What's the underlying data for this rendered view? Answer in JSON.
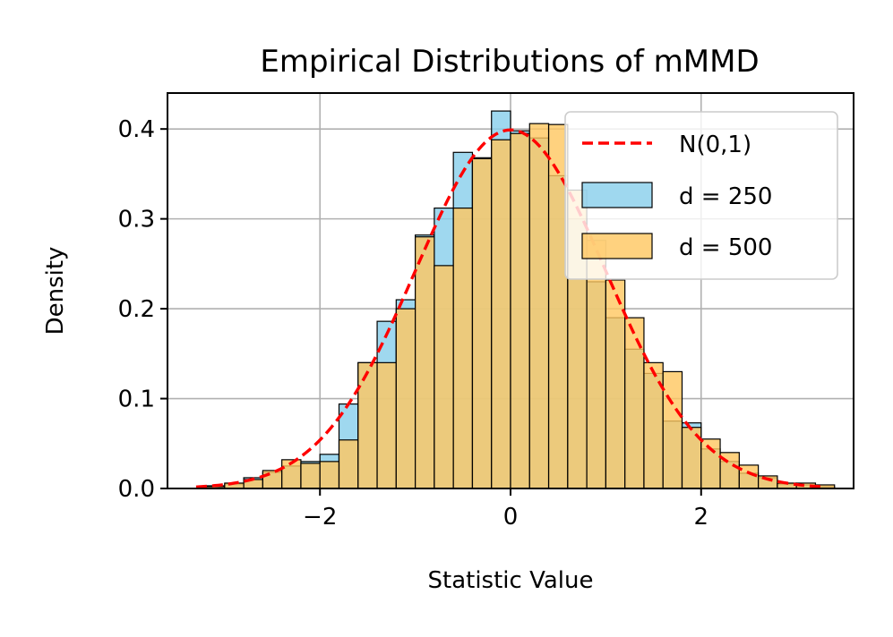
{
  "chart_data": {
    "type": "bar",
    "title": "Empirical Distributions of mMMD",
    "xlabel": "Statistic Value",
    "ylabel": "Density",
    "xlim": [
      -3.6,
      3.6
    ],
    "ylim": [
      0,
      0.44
    ],
    "xticks": [
      -2,
      0,
      2
    ],
    "xtick_labels": [
      "−2",
      "0",
      "2"
    ],
    "yticks": [
      0.0,
      0.1,
      0.2,
      0.3,
      0.4
    ],
    "ytick_labels": [
      "0.0",
      "0.1",
      "0.2",
      "0.3",
      "0.4"
    ],
    "grid": true,
    "legend_position": "top-right",
    "series": [
      {
        "name": "d = 250",
        "kind": "histogram",
        "color": "#87ceeb",
        "bin_width": 0.2,
        "bins": [
          [
            -3.2,
            0.003
          ],
          [
            -3.0,
            0.005
          ],
          [
            -2.8,
            0.012
          ],
          [
            -2.6,
            0.018
          ],
          [
            -2.4,
            0.025
          ],
          [
            -2.2,
            0.03
          ],
          [
            -2.0,
            0.038
          ],
          [
            -1.8,
            0.094
          ],
          [
            -1.6,
            0.14
          ],
          [
            -1.4,
            0.186
          ],
          [
            -1.2,
            0.21
          ],
          [
            -1.0,
            0.282
          ],
          [
            -0.8,
            0.312
          ],
          [
            -0.6,
            0.374
          ],
          [
            -0.4,
            0.368
          ],
          [
            -0.2,
            0.42
          ],
          [
            0.0,
            0.398
          ],
          [
            0.2,
            0.39
          ],
          [
            0.4,
            0.348
          ],
          [
            0.6,
            0.3
          ],
          [
            0.8,
            0.23
          ],
          [
            1.0,
            0.19
          ],
          [
            1.2,
            0.155
          ],
          [
            1.4,
            0.128
          ],
          [
            1.6,
            0.075
          ],
          [
            1.8,
            0.073
          ],
          [
            2.0,
            0.044
          ],
          [
            2.2,
            0.03
          ],
          [
            2.4,
            0.017
          ],
          [
            2.6,
            0.012
          ],
          [
            2.8,
            0.005
          ],
          [
            3.0,
            0.004
          ],
          [
            3.2,
            0.002
          ]
        ]
      },
      {
        "name": "d = 500",
        "kind": "histogram",
        "color": "#ffc75f",
        "bin_width": 0.2,
        "bins": [
          [
            -3.2,
            0.002
          ],
          [
            -3.0,
            0.006
          ],
          [
            -2.8,
            0.01
          ],
          [
            -2.6,
            0.02
          ],
          [
            -2.4,
            0.032
          ],
          [
            -2.2,
            0.028
          ],
          [
            -2.0,
            0.03
          ],
          [
            -1.8,
            0.054
          ],
          [
            -1.6,
            0.14
          ],
          [
            -1.4,
            0.14
          ],
          [
            -1.2,
            0.2
          ],
          [
            -1.0,
            0.28
          ],
          [
            -0.8,
            0.248
          ],
          [
            -0.6,
            0.312
          ],
          [
            -0.4,
            0.367
          ],
          [
            -0.2,
            0.388
          ],
          [
            0.0,
            0.395
          ],
          [
            0.2,
            0.406
          ],
          [
            0.4,
            0.405
          ],
          [
            0.6,
            0.332
          ],
          [
            0.8,
            0.276
          ],
          [
            1.0,
            0.232
          ],
          [
            1.2,
            0.19
          ],
          [
            1.4,
            0.14
          ],
          [
            1.6,
            0.13
          ],
          [
            1.8,
            0.068
          ],
          [
            2.0,
            0.055
          ],
          [
            2.2,
            0.04
          ],
          [
            2.4,
            0.026
          ],
          [
            2.6,
            0.014
          ],
          [
            2.8,
            0.006
          ],
          [
            3.0,
            0.006
          ],
          [
            3.2,
            0.004
          ]
        ]
      },
      {
        "name": "N(0,1)",
        "kind": "line",
        "color": "#ff0000",
        "style": "dashed",
        "function": "standard normal pdf",
        "x_range": [
          -3.3,
          3.3
        ]
      }
    ]
  }
}
